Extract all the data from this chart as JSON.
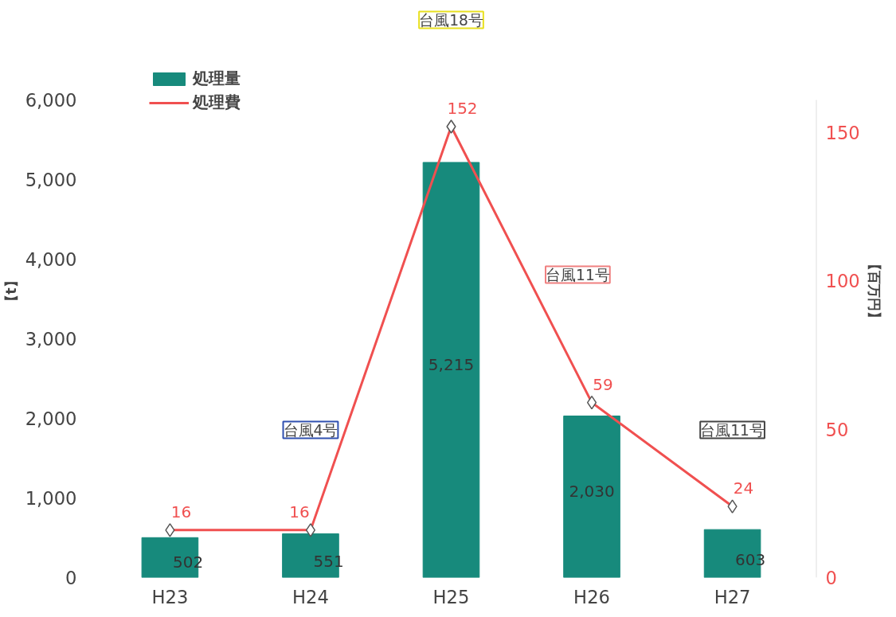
{
  "chart_data": {
    "type": "bar",
    "categories": [
      "H23",
      "H24",
      "H25",
      "H26",
      "H27"
    ],
    "series": [
      {
        "name": "処理量",
        "color": "#178a7c",
        "values": [
          502,
          551,
          5215,
          2030,
          603
        ],
        "value_labels": [
          "502",
          "551",
          "5,215",
          "2,030",
          "603"
        ]
      },
      {
        "name": "処理費",
        "type": "line",
        "axis": "y2",
        "color": "#f05050",
        "marker": "diamond",
        "values": [
          16,
          16,
          152,
          59,
          24
        ]
      }
    ],
    "ylabel": "【t】",
    "y2label": "【百万円】",
    "ylim": [
      0,
      6000
    ],
    "yticks": [
      {
        "value": 0,
        "label": "0"
      },
      {
        "value": 1000,
        "label": "1,000"
      },
      {
        "value": 2000,
        "label": "2,000"
      },
      {
        "value": 3000,
        "label": "3,000"
      },
      {
        "value": 4000,
        "label": "4,000"
      },
      {
        "value": 5000,
        "label": "5,000"
      },
      {
        "value": 6000,
        "label": "6,000"
      }
    ],
    "y2lim": [
      0,
      161
    ],
    "y2ticks": [
      0,
      50,
      100,
      150
    ],
    "data_labels": true,
    "legend": "top left",
    "grid": false,
    "annotations": [
      "台風18号",
      "台風4号",
      "台風11号",
      "台風11号"
    ]
  }
}
